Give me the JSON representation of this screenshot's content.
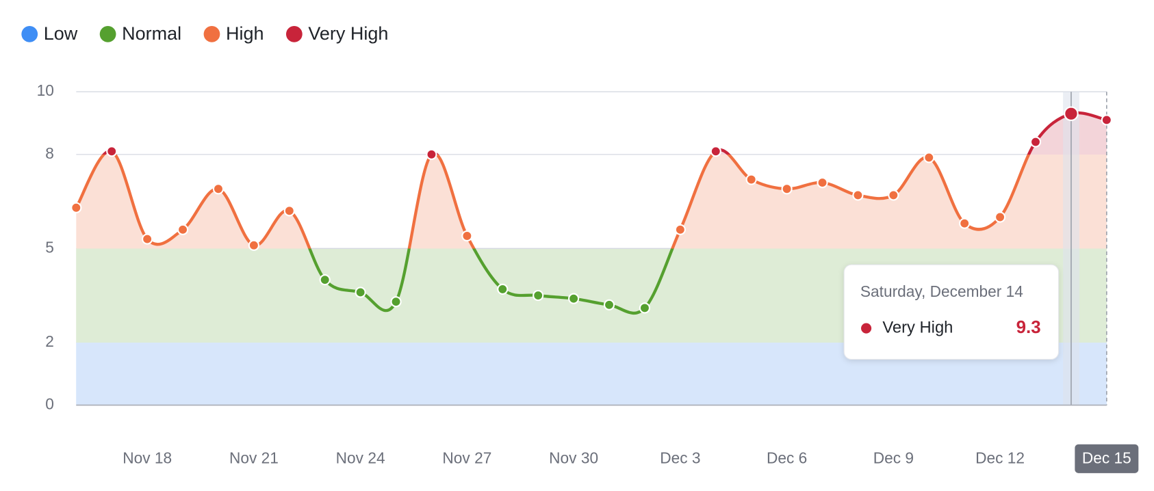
{
  "chart_data": {
    "type": "line",
    "categories": [
      null,
      null,
      "Nov 18",
      null,
      null,
      "Nov 21",
      null,
      null,
      "Nov 24",
      null,
      null,
      "Nov 27",
      null,
      null,
      "Nov 30",
      null,
      null,
      "Dec 3",
      null,
      null,
      "Dec 6",
      null,
      null,
      "Dec 9",
      null,
      null,
      "Dec 12",
      null,
      null,
      "Dec 15"
    ],
    "values": [
      6.3,
      8.1,
      5.3,
      5.6,
      6.9,
      5.1,
      6.2,
      4.0,
      3.6,
      3.3,
      8.0,
      5.4,
      3.7,
      3.5,
      3.4,
      3.2,
      3.1,
      5.6,
      8.1,
      7.2,
      6.9,
      7.1,
      6.7,
      6.7,
      7.9,
      5.8,
      6.0,
      8.4,
      9.3,
      9.1
    ],
    "levels": [
      {
        "name": "Low",
        "color": "#3f8ef5",
        "fill": "#d7e6fb",
        "from": 0
      },
      {
        "name": "Normal",
        "color": "#55a02f",
        "fill": "#deecd6",
        "from": 2
      },
      {
        "name": "High",
        "color": "#f07040",
        "fill": "#fbe0d6",
        "from": 5
      },
      {
        "name": "Very High",
        "color": "#c8243a",
        "fill": "#f3d4d9",
        "from": 8
      }
    ],
    "ylim": [
      0,
      10
    ],
    "yticks": [
      0,
      2,
      5,
      8,
      10
    ],
    "grid": true,
    "legend": "top-left",
    "tooltip": {
      "title": "Saturday, December 14"
    }
  }
}
